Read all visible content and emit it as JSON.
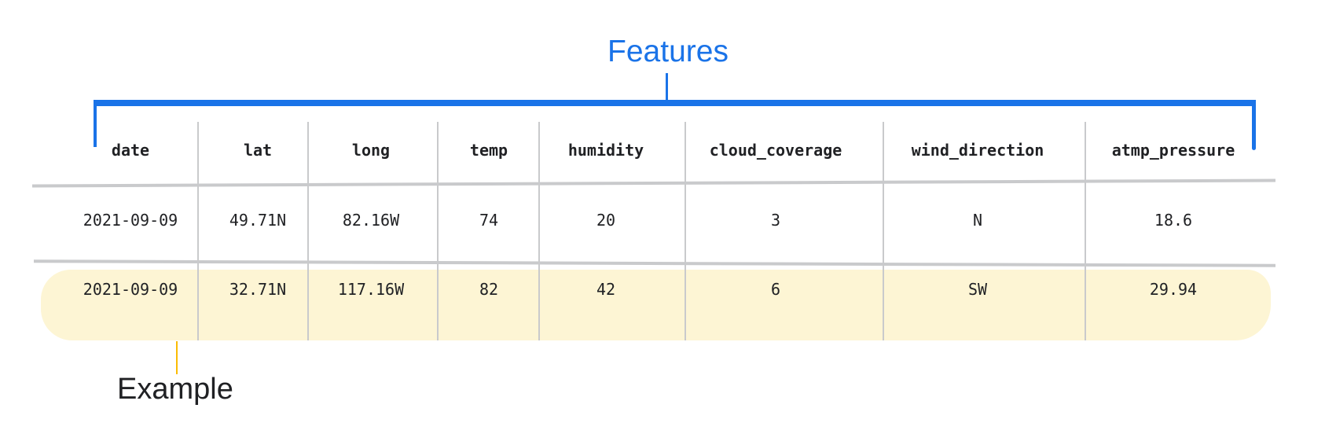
{
  "annotations": {
    "features_label": "Features",
    "example_label": "Example",
    "features_color": "#1a73e8",
    "example_color": "#fbbc04",
    "example_highlight": "#fdf5d4"
  },
  "table": {
    "columns": [
      "date",
      "lat",
      "long",
      "temp",
      "humidity",
      "cloud_coverage",
      "wind_direction",
      "atmp_pressure"
    ],
    "rows": [
      [
        "2021-09-09",
        "49.71N",
        "82.16W",
        "74",
        "20",
        "3",
        "N",
        "18.6"
      ],
      [
        "2021-09-09",
        "32.71N",
        "117.16W",
        "82",
        "42",
        "6",
        "SW",
        "29.94"
      ]
    ],
    "highlighted_row": 1
  }
}
